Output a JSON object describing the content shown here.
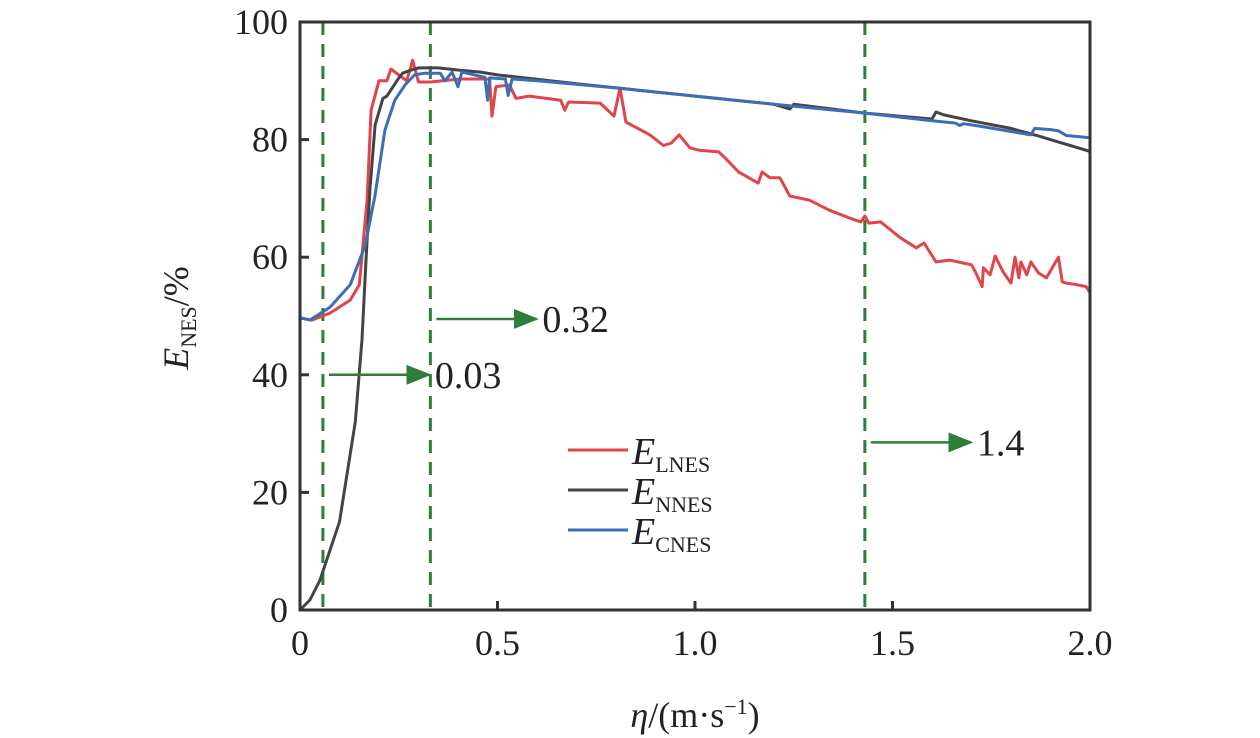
{
  "chart_data": {
    "type": "line",
    "title": "",
    "xlabel": {
      "symbol": "η",
      "rest": "/(m·s",
      "sup": "−1",
      "close": ")"
    },
    "ylabel": {
      "symbol": "E",
      "sub": "NES",
      "rest": "/%"
    },
    "xlim": [
      0,
      2.0
    ],
    "ylim": [
      0,
      100
    ],
    "x_ticks": [
      0,
      0.5,
      1.0,
      1.5,
      2.0
    ],
    "x_tick_labels": [
      "0",
      "0.5",
      "1.0",
      "1.5",
      "2.0"
    ],
    "y_ticks": [
      0,
      20,
      40,
      60,
      80,
      100
    ],
    "y_tick_labels": [
      "0",
      "20",
      "40",
      "60",
      "80",
      "100"
    ],
    "grid": false,
    "legend_position": "center",
    "series": [
      {
        "name": "E_LNES",
        "label_main": "E",
        "label_sub": "LNES",
        "color": "#e0454c",
        "x": [
          0,
          0.03,
          0.076,
          0.127,
          0.15,
          0.17,
          0.18,
          0.2,
          0.22,
          0.23,
          0.25,
          0.27,
          0.28,
          0.285,
          0.3,
          0.33,
          0.405,
          0.455,
          0.48,
          0.486,
          0.496,
          0.53,
          0.547,
          0.58,
          0.66,
          0.67,
          0.68,
          0.76,
          0.795,
          0.81,
          0.825,
          0.886,
          0.92,
          0.94,
          0.96,
          0.987,
          1.01,
          1.06,
          1.076,
          1.11,
          1.16,
          1.17,
          1.19,
          1.215,
          1.24,
          1.29,
          1.34,
          1.39,
          1.42,
          1.43,
          1.44,
          1.47,
          1.52,
          1.56,
          1.58,
          1.61,
          1.645,
          1.7,
          1.71,
          1.727,
          1.73,
          1.747,
          1.76,
          1.78,
          1.8,
          1.81,
          1.82,
          1.825,
          1.84,
          1.85,
          1.87,
          1.89,
          1.92,
          1.93,
          1.94,
          1.96,
          1.99,
          2.0
        ],
        "y": [
          49.7,
          49.3,
          50.5,
          52.7,
          55.3,
          69.7,
          85,
          90,
          90,
          92,
          91,
          90,
          92.2,
          93.5,
          89.8,
          89.8,
          90.3,
          90.3,
          90.3,
          84,
          89,
          89.3,
          87,
          87.4,
          86.7,
          85,
          86.4,
          86.2,
          84,
          88.8,
          83,
          80.8,
          79,
          79.4,
          80.8,
          78.6,
          78.2,
          77.9,
          76.9,
          74.5,
          72.6,
          74.5,
          73.5,
          73.5,
          70.4,
          69.7,
          68,
          66.7,
          66,
          67,
          65.8,
          66,
          63.3,
          61.6,
          62.4,
          59.2,
          59.5,
          58.7,
          57.5,
          55,
          58.2,
          57,
          60.2,
          57.5,
          55.6,
          60,
          56.5,
          59.2,
          57,
          59.2,
          57.3,
          56.5,
          60,
          55.8,
          55.6,
          55.4,
          55,
          54
        ]
      },
      {
        "name": "E_NNES",
        "label_main": "E",
        "label_sub": "NNES",
        "color": "#444444",
        "x": [
          0,
          0.025,
          0.05,
          0.1,
          0.14,
          0.157,
          0.167,
          0.177,
          0.19,
          0.21,
          0.22,
          0.25,
          0.26,
          0.28,
          0.3,
          0.35,
          0.405,
          0.455,
          0.5,
          0.7,
          1.0,
          1.2,
          1.23,
          1.24,
          1.25,
          1.43,
          1.6,
          1.61,
          1.63,
          1.7,
          1.8,
          1.87,
          1.91,
          1.95,
          2.0
        ],
        "y": [
          0,
          1.7,
          5,
          15,
          32,
          46,
          59.5,
          71.4,
          82.5,
          87,
          87.4,
          90.5,
          91.3,
          91.8,
          92.2,
          92.2,
          91.8,
          91.5,
          91,
          89.5,
          87.4,
          86,
          85.4,
          85.2,
          86,
          84.5,
          83.5,
          84.7,
          84.2,
          83.2,
          81.9,
          80.6,
          79.8,
          79,
          78
        ]
      },
      {
        "name": "E_CNES",
        "label_main": "E",
        "label_sub": "CNES",
        "color": "#3a6fb7",
        "x": [
          0,
          0.025,
          0.076,
          0.127,
          0.165,
          0.19,
          0.215,
          0.24,
          0.266,
          0.29,
          0.316,
          0.355,
          0.367,
          0.385,
          0.4,
          0.41,
          0.468,
          0.475,
          0.48,
          0.52,
          0.527,
          0.537,
          0.6,
          0.8,
          1.0,
          1.2,
          1.43,
          1.6,
          1.66,
          1.67,
          1.68,
          1.72,
          1.85,
          1.86,
          1.9,
          1.92,
          1.94,
          2.0
        ],
        "y": [
          49.7,
          49.3,
          51.5,
          55.3,
          62,
          70.6,
          81.6,
          86.7,
          89.3,
          91,
          91.3,
          91.3,
          90,
          91.5,
          89,
          91.5,
          90.6,
          86.7,
          90.5,
          90.3,
          87.5,
          90.3,
          90,
          88.8,
          87.4,
          86,
          84.5,
          83.2,
          82.8,
          82.4,
          82.7,
          82.3,
          80.8,
          81.9,
          81.7,
          81.5,
          80.7,
          80.3
        ]
      }
    ],
    "reference_lines": [
      {
        "x": 0.058,
        "color": "#2e7d3a",
        "annotation": "0.03",
        "annotation_y": 40
      },
      {
        "x": 0.33,
        "color": "#2e7d3a",
        "annotation": "0.32",
        "annotation_y": 49.5
      },
      {
        "x": 1.43,
        "color": "#2e7d3a",
        "annotation": "1.4",
        "annotation_y": 28.5
      }
    ]
  }
}
